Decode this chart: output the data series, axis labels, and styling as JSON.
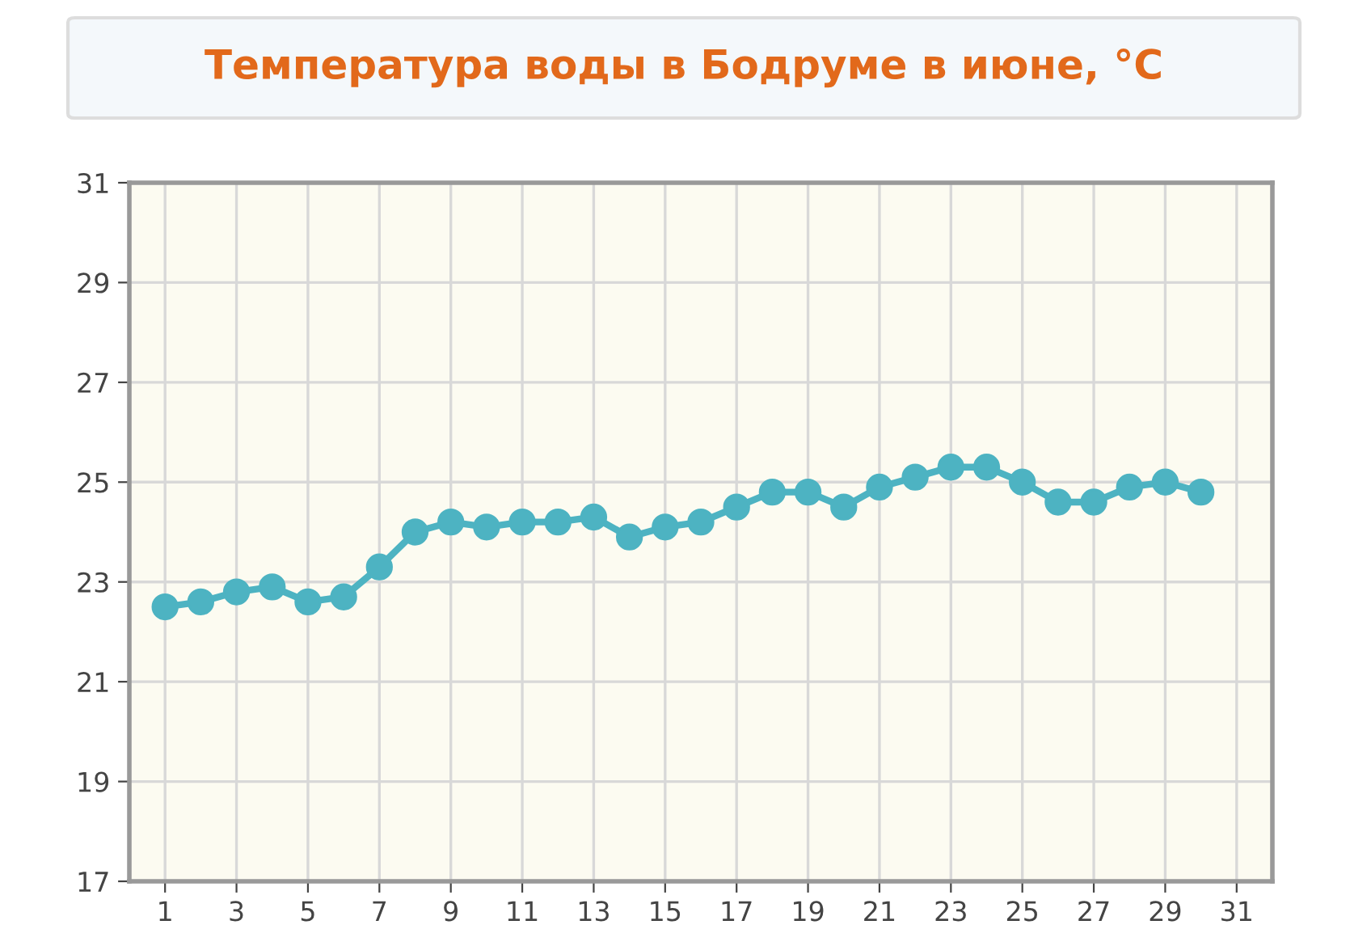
{
  "chart_data": {
    "type": "line",
    "title": "Температура воды в Бодруме в июне, °C",
    "x": [
      1,
      2,
      3,
      4,
      5,
      6,
      7,
      8,
      9,
      10,
      11,
      12,
      13,
      14,
      15,
      16,
      17,
      18,
      19,
      20,
      21,
      22,
      23,
      24,
      25,
      26,
      27,
      28,
      29,
      30
    ],
    "series": [
      {
        "color": "#4db3c2",
        "values": [
          22.5,
          22.6,
          22.8,
          22.9,
          22.6,
          22.7,
          23.3,
          24.0,
          24.2,
          24.1,
          24.2,
          24.2,
          24.3,
          23.9,
          24.1,
          24.2,
          24.5,
          24.8,
          24.8,
          24.5,
          24.9,
          25.1,
          25.3,
          25.3,
          25.0,
          24.6,
          24.6,
          24.9,
          25.0,
          24.8
        ]
      }
    ],
    "xlim": [
      0,
      32
    ],
    "xticks": [
      1,
      3,
      5,
      7,
      9,
      11,
      13,
      15,
      17,
      19,
      21,
      23,
      25,
      27,
      29,
      31
    ],
    "ylim": [
      17,
      31
    ],
    "yticks": [
      17,
      19,
      21,
      23,
      25,
      27,
      29,
      31
    ],
    "grid": true,
    "marker": "circle",
    "line_style": "solid"
  }
}
